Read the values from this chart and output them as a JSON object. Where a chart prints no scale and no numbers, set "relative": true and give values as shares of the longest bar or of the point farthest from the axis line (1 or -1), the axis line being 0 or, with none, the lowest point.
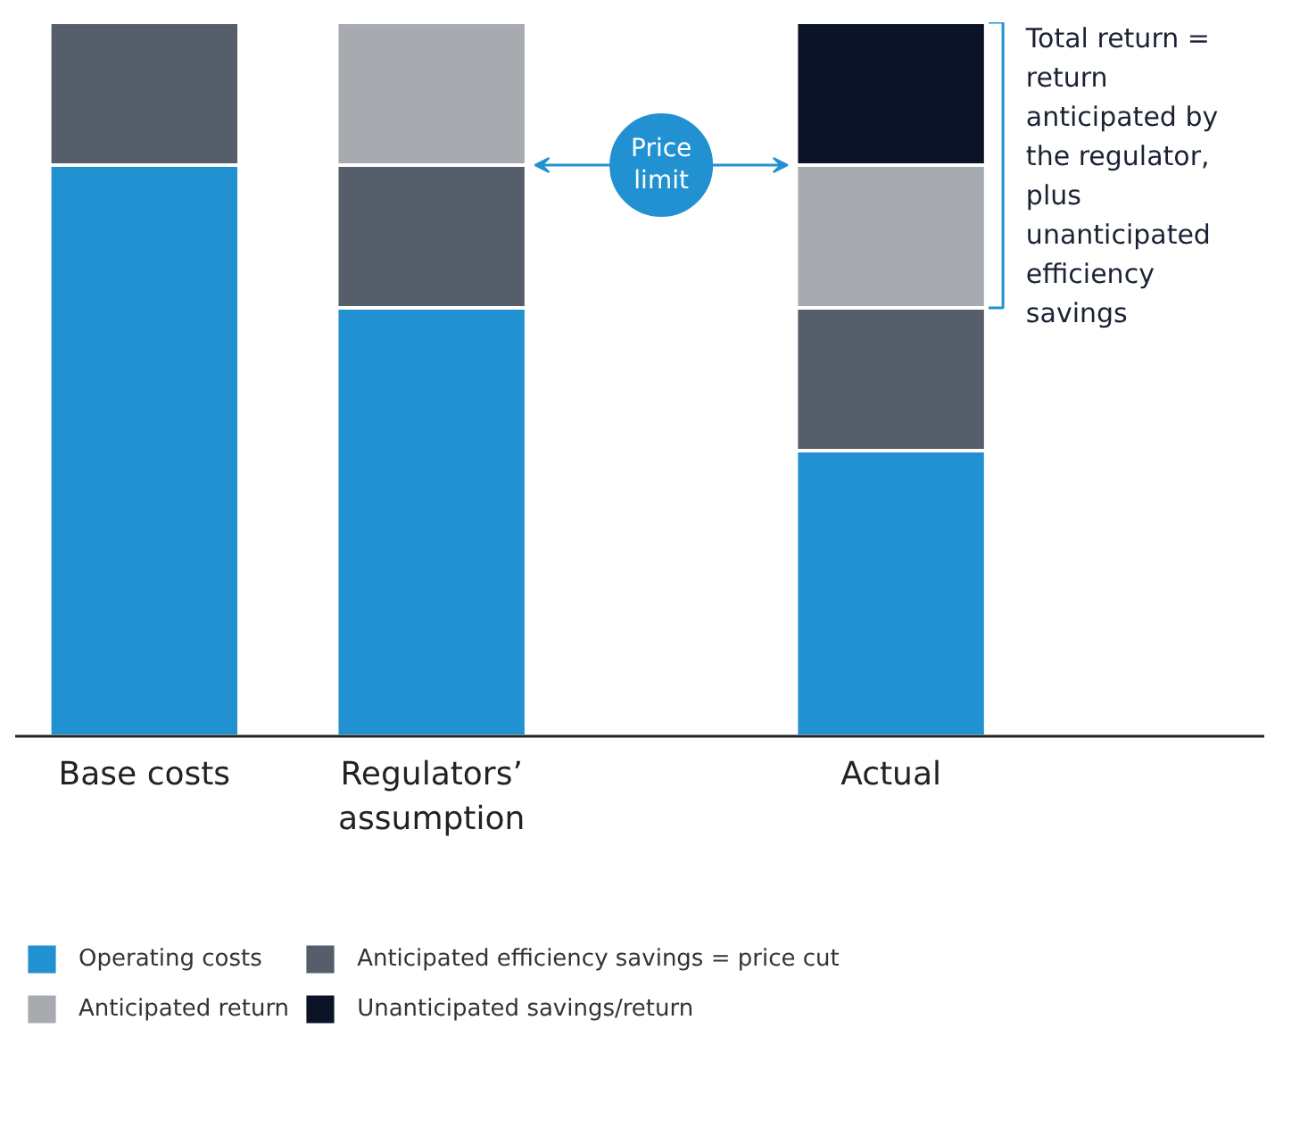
{
  "chart_data": {
    "type": "bar",
    "stacked": true,
    "relative": true,
    "categories": [
      "Base costs",
      "Regulators’ assumption",
      "Actual"
    ],
    "series": [
      {
        "name": "Operating costs",
        "color": "#2191d1",
        "values": [
          0.8,
          0.6,
          0.4
        ]
      },
      {
        "name": "Anticipated efficiency savings = price cut",
        "color": "#555e6a",
        "values": [
          0.2,
          0.2,
          0.2
        ]
      },
      {
        "name": "Anticipated return",
        "color": "#a7abb0",
        "values": [
          null,
          0.2,
          0.2
        ]
      },
      {
        "name": "Unanticipated savings/return",
        "color": "#0b1426",
        "values": [
          null,
          null,
          0.2
        ]
      }
    ],
    "annotations": [
      "Price limit",
      "Total return = return anticipated by the regulator, plus unanticipated efficiency savings"
    ],
    "legend": "bottom"
  }
}
